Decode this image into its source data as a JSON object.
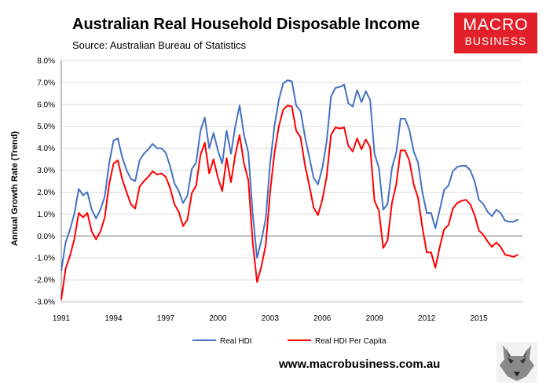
{
  "header": {
    "title": "Australian Real Household Disposable Income",
    "subtitle": "Source: Australian Bureau of Statistics"
  },
  "logo": {
    "line1": "MACRO",
    "line2": "BUSINESS"
  },
  "footer": {
    "website": "www.macrobusiness.com.au"
  },
  "colors": {
    "real_hdi": "#4472c4",
    "real_hdi_per_capita": "#ff0000",
    "logo_red": "#e3202a"
  },
  "icons": {
    "mascot": "wolf-logo-icon"
  },
  "chart_data": {
    "type": "line",
    "title": "Australian Real Household Disposable Income",
    "ylabel": "Annual Growth Rate (Trend)",
    "xlabel": "",
    "ylim": [
      -3.0,
      8.0
    ],
    "xlim": [
      1991,
      2017.5
    ],
    "y_ticks": [
      "-3.0%",
      "-2.0%",
      "-1.0%",
      "0.0%",
      "1.0%",
      "2.0%",
      "3.0%",
      "4.0%",
      "5.0%",
      "6.0%",
      "7.0%",
      "8.0%"
    ],
    "x_ticks": [
      "1991",
      "1994",
      "1997",
      "2000",
      "2003",
      "2006",
      "2009",
      "2012",
      "2015"
    ],
    "legend_position": "bottom",
    "series": [
      {
        "name": "Real HDI",
        "points": [
          [
            1991.0,
            -1.6
          ],
          [
            1991.25,
            -0.3
          ],
          [
            1991.5,
            0.3
          ],
          [
            1991.75,
            1.0
          ],
          [
            1992.0,
            2.15
          ],
          [
            1992.25,
            1.85
          ],
          [
            1992.5,
            2.0
          ],
          [
            1992.75,
            1.2
          ],
          [
            1993.0,
            0.8
          ],
          [
            1993.25,
            1.2
          ],
          [
            1993.5,
            1.8
          ],
          [
            1993.75,
            3.3
          ],
          [
            1994.0,
            4.35
          ],
          [
            1994.25,
            4.45
          ],
          [
            1994.5,
            3.6
          ],
          [
            1994.75,
            3.0
          ],
          [
            1995.0,
            2.6
          ],
          [
            1995.25,
            2.5
          ],
          [
            1995.5,
            3.45
          ],
          [
            1995.75,
            3.75
          ],
          [
            1996.0,
            3.95
          ],
          [
            1996.25,
            4.2
          ],
          [
            1996.5,
            4.0
          ],
          [
            1996.75,
            4.0
          ],
          [
            1997.0,
            3.8
          ],
          [
            1997.25,
            3.2
          ],
          [
            1997.5,
            2.4
          ],
          [
            1997.75,
            2.05
          ],
          [
            1998.0,
            1.5
          ],
          [
            1998.25,
            1.85
          ],
          [
            1998.5,
            3.05
          ],
          [
            1998.75,
            3.35
          ],
          [
            1999.0,
            4.8
          ],
          [
            1999.25,
            5.4
          ],
          [
            1999.5,
            4.0
          ],
          [
            1999.75,
            4.7
          ],
          [
            2000.0,
            3.9
          ],
          [
            2000.25,
            3.3
          ],
          [
            2000.5,
            4.8
          ],
          [
            2000.75,
            3.75
          ],
          [
            2001.0,
            5.0
          ],
          [
            2001.25,
            5.95
          ],
          [
            2001.5,
            4.6
          ],
          [
            2001.75,
            3.8
          ],
          [
            2002.0,
            1.0
          ],
          [
            2002.25,
            -1.0
          ],
          [
            2002.5,
            -0.2
          ],
          [
            2002.75,
            0.8
          ],
          [
            2003.0,
            3.3
          ],
          [
            2003.25,
            5.0
          ],
          [
            2003.5,
            6.2
          ],
          [
            2003.75,
            6.95
          ],
          [
            2004.0,
            7.1
          ],
          [
            2004.25,
            7.05
          ],
          [
            2004.5,
            5.95
          ],
          [
            2004.75,
            5.7
          ],
          [
            2005.0,
            4.55
          ],
          [
            2005.25,
            3.6
          ],
          [
            2005.5,
            2.65
          ],
          [
            2005.75,
            2.35
          ],
          [
            2006.0,
            3.1
          ],
          [
            2006.25,
            4.3
          ],
          [
            2006.5,
            6.35
          ],
          [
            2006.75,
            6.75
          ],
          [
            2007.0,
            6.8
          ],
          [
            2007.25,
            6.9
          ],
          [
            2007.5,
            6.05
          ],
          [
            2007.75,
            5.9
          ],
          [
            2008.0,
            6.65
          ],
          [
            2008.25,
            6.1
          ],
          [
            2008.5,
            6.6
          ],
          [
            2008.75,
            6.2
          ],
          [
            2009.0,
            3.75
          ],
          [
            2009.25,
            3.1
          ],
          [
            2009.5,
            1.2
          ],
          [
            2009.75,
            1.45
          ],
          [
            2010.0,
            3.1
          ],
          [
            2010.25,
            3.8
          ],
          [
            2010.5,
            5.35
          ],
          [
            2010.75,
            5.35
          ],
          [
            2011.0,
            4.85
          ],
          [
            2011.25,
            3.85
          ],
          [
            2011.5,
            3.35
          ],
          [
            2011.75,
            2.0
          ],
          [
            2012.0,
            1.05
          ],
          [
            2012.25,
            1.05
          ],
          [
            2012.5,
            0.35
          ],
          [
            2012.75,
            1.2
          ],
          [
            2013.0,
            2.1
          ],
          [
            2013.25,
            2.3
          ],
          [
            2013.5,
            2.95
          ],
          [
            2013.75,
            3.15
          ],
          [
            2014.0,
            3.2
          ],
          [
            2014.25,
            3.2
          ],
          [
            2014.5,
            3.0
          ],
          [
            2014.75,
            2.5
          ],
          [
            2015.0,
            1.65
          ],
          [
            2015.25,
            1.45
          ],
          [
            2015.5,
            1.1
          ],
          [
            2015.75,
            0.9
          ],
          [
            2016.0,
            1.2
          ],
          [
            2016.25,
            1.05
          ],
          [
            2016.5,
            0.7
          ],
          [
            2016.75,
            0.65
          ],
          [
            2017.0,
            0.65
          ],
          [
            2017.25,
            0.75
          ]
        ]
      },
      {
        "name": "Real HDI Per Capita",
        "points": [
          [
            1991.0,
            -2.9
          ],
          [
            1991.25,
            -1.5
          ],
          [
            1991.5,
            -0.9
          ],
          [
            1991.75,
            -0.15
          ],
          [
            1992.0,
            1.05
          ],
          [
            1992.25,
            0.85
          ],
          [
            1992.5,
            1.05
          ],
          [
            1992.75,
            0.2
          ],
          [
            1993.0,
            -0.15
          ],
          [
            1993.25,
            0.2
          ],
          [
            1993.5,
            0.85
          ],
          [
            1993.75,
            2.35
          ],
          [
            1994.0,
            3.3
          ],
          [
            1994.25,
            3.45
          ],
          [
            1994.5,
            2.6
          ],
          [
            1994.75,
            2.0
          ],
          [
            1995.0,
            1.45
          ],
          [
            1995.25,
            1.25
          ],
          [
            1995.5,
            2.25
          ],
          [
            1995.75,
            2.5
          ],
          [
            1996.0,
            2.7
          ],
          [
            1996.25,
            2.95
          ],
          [
            1996.5,
            2.8
          ],
          [
            1996.75,
            2.85
          ],
          [
            1997.0,
            2.7
          ],
          [
            1997.25,
            2.2
          ],
          [
            1997.5,
            1.45
          ],
          [
            1997.75,
            1.1
          ],
          [
            1998.0,
            0.45
          ],
          [
            1998.25,
            0.75
          ],
          [
            1998.5,
            1.95
          ],
          [
            1998.75,
            2.3
          ],
          [
            1999.0,
            3.7
          ],
          [
            1999.25,
            4.25
          ],
          [
            1999.5,
            2.85
          ],
          [
            1999.75,
            3.5
          ],
          [
            2000.0,
            2.65
          ],
          [
            2000.25,
            2.05
          ],
          [
            2000.5,
            3.55
          ],
          [
            2000.75,
            2.45
          ],
          [
            2001.0,
            3.7
          ],
          [
            2001.25,
            4.6
          ],
          [
            2001.5,
            3.3
          ],
          [
            2001.75,
            2.55
          ],
          [
            2002.0,
            -0.3
          ],
          [
            2002.25,
            -2.1
          ],
          [
            2002.5,
            -1.4
          ],
          [
            2002.75,
            -0.4
          ],
          [
            2003.0,
            2.0
          ],
          [
            2003.25,
            3.75
          ],
          [
            2003.5,
            5.0
          ],
          [
            2003.75,
            5.75
          ],
          [
            2004.0,
            5.95
          ],
          [
            2004.25,
            5.9
          ],
          [
            2004.5,
            4.8
          ],
          [
            2004.75,
            4.5
          ],
          [
            2005.0,
            3.25
          ],
          [
            2005.25,
            2.3
          ],
          [
            2005.5,
            1.3
          ],
          [
            2005.75,
            0.95
          ],
          [
            2006.0,
            1.65
          ],
          [
            2006.25,
            2.7
          ],
          [
            2006.5,
            4.6
          ],
          [
            2006.75,
            4.95
          ],
          [
            2007.0,
            4.9
          ],
          [
            2007.25,
            4.95
          ],
          [
            2007.5,
            4.1
          ],
          [
            2007.75,
            3.85
          ],
          [
            2008.0,
            4.45
          ],
          [
            2008.25,
            3.95
          ],
          [
            2008.5,
            4.4
          ],
          [
            2008.75,
            4.05
          ],
          [
            2009.0,
            1.6
          ],
          [
            2009.25,
            1.15
          ],
          [
            2009.5,
            -0.55
          ],
          [
            2009.75,
            -0.2
          ],
          [
            2010.0,
            1.5
          ],
          [
            2010.25,
            2.35
          ],
          [
            2010.5,
            3.9
          ],
          [
            2010.75,
            3.9
          ],
          [
            2011.0,
            3.45
          ],
          [
            2011.25,
            2.35
          ],
          [
            2011.5,
            1.75
          ],
          [
            2011.75,
            0.4
          ],
          [
            2012.0,
            -0.75
          ],
          [
            2012.25,
            -0.75
          ],
          [
            2012.5,
            -1.45
          ],
          [
            2012.75,
            -0.5
          ],
          [
            2013.0,
            0.3
          ],
          [
            2013.25,
            0.5
          ],
          [
            2013.5,
            1.25
          ],
          [
            2013.75,
            1.5
          ],
          [
            2014.0,
            1.6
          ],
          [
            2014.25,
            1.65
          ],
          [
            2014.5,
            1.45
          ],
          [
            2014.75,
            0.95
          ],
          [
            2015.0,
            0.25
          ],
          [
            2015.25,
            0.05
          ],
          [
            2015.5,
            -0.25
          ],
          [
            2015.75,
            -0.5
          ],
          [
            2016.0,
            -0.3
          ],
          [
            2016.25,
            -0.5
          ],
          [
            2016.5,
            -0.85
          ],
          [
            2016.75,
            -0.9
          ],
          [
            2017.0,
            -0.95
          ],
          [
            2017.25,
            -0.85
          ]
        ]
      }
    ]
  }
}
